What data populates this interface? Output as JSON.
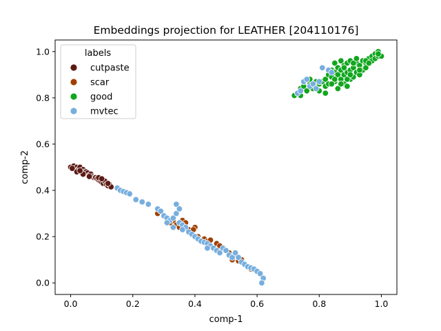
{
  "chart_data": {
    "type": "scatter",
    "title": "Embeddings projection for LEATHER [204110176]",
    "xlabel": "comp-1",
    "ylabel": "comp-2",
    "xlim": [
      -0.05,
      1.05
    ],
    "ylim": [
      -0.05,
      1.05
    ],
    "xticks": [
      "0.0",
      "0.2",
      "0.4",
      "0.6",
      "0.8",
      "1.0"
    ],
    "yticks": [
      "0.0",
      "0.2",
      "0.4",
      "0.6",
      "0.8",
      "1.0"
    ],
    "grid": false,
    "legend": {
      "title": "labels",
      "placement": "top-left"
    },
    "series": [
      {
        "name": "cutpaste",
        "color": "#5c1a14",
        "points": [
          [
            0.0,
            0.5
          ],
          [
            0.01,
            0.505
          ],
          [
            0.015,
            0.495
          ],
          [
            0.02,
            0.5
          ],
          [
            0.025,
            0.49
          ],
          [
            0.03,
            0.5
          ],
          [
            0.035,
            0.485
          ],
          [
            0.04,
            0.49
          ],
          [
            0.045,
            0.48
          ],
          [
            0.05,
            0.48
          ],
          [
            0.055,
            0.475
          ],
          [
            0.06,
            0.465
          ],
          [
            0.065,
            0.47
          ],
          [
            0.07,
            0.46
          ],
          [
            0.075,
            0.455
          ],
          [
            0.08,
            0.455
          ],
          [
            0.085,
            0.45
          ],
          [
            0.09,
            0.445
          ],
          [
            0.095,
            0.44
          ],
          [
            0.1,
            0.435
          ],
          [
            0.105,
            0.43
          ],
          [
            0.11,
            0.44
          ],
          [
            0.115,
            0.425
          ],
          [
            0.12,
            0.42
          ],
          [
            0.125,
            0.425
          ],
          [
            0.13,
            0.415
          ],
          [
            0.02,
            0.48
          ],
          [
            0.04,
            0.47
          ],
          [
            0.06,
            0.46
          ],
          [
            0.09,
            0.455
          ],
          [
            0.1,
            0.45
          ],
          [
            0.12,
            0.43
          ],
          [
            0.005,
            0.495
          ],
          [
            0.03,
            0.485
          ]
        ]
      },
      {
        "name": "scar",
        "color": "#a04000",
        "points": [
          [
            0.28,
            0.3
          ],
          [
            0.3,
            0.29
          ],
          [
            0.32,
            0.26
          ],
          [
            0.33,
            0.27
          ],
          [
            0.34,
            0.25
          ],
          [
            0.35,
            0.24
          ],
          [
            0.36,
            0.27
          ],
          [
            0.37,
            0.26
          ],
          [
            0.38,
            0.23
          ],
          [
            0.4,
            0.24
          ],
          [
            0.41,
            0.2
          ],
          [
            0.43,
            0.19
          ],
          [
            0.44,
            0.18
          ],
          [
            0.45,
            0.185
          ],
          [
            0.47,
            0.17
          ],
          [
            0.48,
            0.16
          ],
          [
            0.5,
            0.14
          ],
          [
            0.51,
            0.13
          ],
          [
            0.52,
            0.1
          ],
          [
            0.53,
            0.12
          ],
          [
            0.54,
            0.095
          ],
          [
            0.55,
            0.1
          ],
          [
            0.56,
            0.08
          ],
          [
            0.57,
            0.07
          ],
          [
            0.58,
            0.06
          ],
          [
            0.59,
            0.06
          ],
          [
            0.395,
            0.23
          ]
        ]
      },
      {
        "name": "good",
        "color": "#11a61e",
        "points": [
          [
            0.72,
            0.81
          ],
          [
            0.73,
            0.82
          ],
          [
            0.74,
            0.81
          ],
          [
            0.74,
            0.84
          ],
          [
            0.75,
            0.85
          ],
          [
            0.76,
            0.83
          ],
          [
            0.77,
            0.86
          ],
          [
            0.77,
            0.88
          ],
          [
            0.78,
            0.84
          ],
          [
            0.79,
            0.87
          ],
          [
            0.8,
            0.86
          ],
          [
            0.81,
            0.87
          ],
          [
            0.82,
            0.85
          ],
          [
            0.82,
            0.88
          ],
          [
            0.83,
            0.9
          ],
          [
            0.83,
            0.86
          ],
          [
            0.84,
            0.92
          ],
          [
            0.84,
            0.89
          ],
          [
            0.85,
            0.95
          ],
          [
            0.85,
            0.91
          ],
          [
            0.85,
            0.87
          ],
          [
            0.86,
            0.93
          ],
          [
            0.86,
            0.9
          ],
          [
            0.86,
            0.84
          ],
          [
            0.87,
            0.96
          ],
          [
            0.87,
            0.92
          ],
          [
            0.87,
            0.88
          ],
          [
            0.88,
            0.94
          ],
          [
            0.88,
            0.9
          ],
          [
            0.88,
            0.86
          ],
          [
            0.89,
            0.95
          ],
          [
            0.89,
            0.91
          ],
          [
            0.89,
            0.85
          ],
          [
            0.9,
            0.96
          ],
          [
            0.9,
            0.92
          ],
          [
            0.9,
            0.88
          ],
          [
            0.91,
            0.93
          ],
          [
            0.91,
            0.89
          ],
          [
            0.92,
            0.95
          ],
          [
            0.92,
            0.91
          ],
          [
            0.93,
            0.94
          ],
          [
            0.93,
            0.9
          ],
          [
            0.94,
            0.96
          ],
          [
            0.94,
            0.92
          ],
          [
            0.95,
            0.95
          ],
          [
            0.95,
            0.93
          ],
          [
            0.96,
            0.97
          ],
          [
            0.97,
            0.98
          ],
          [
            0.97,
            0.96
          ],
          [
            0.98,
            0.99
          ],
          [
            0.98,
            0.97
          ],
          [
            0.99,
            1.0
          ],
          [
            0.99,
            0.98
          ],
          [
            1.0,
            0.98
          ],
          [
            0.85,
            0.88
          ],
          [
            0.87,
            0.86
          ],
          [
            0.89,
            0.88
          ],
          [
            0.91,
            0.95
          ],
          [
            0.93,
            0.92
          ],
          [
            0.95,
            0.96
          ],
          [
            0.96,
            0.95
          ],
          [
            0.99,
            0.99
          ],
          [
            0.84,
            0.86
          ],
          [
            0.88,
            0.93
          ],
          [
            0.9,
            0.9
          ],
          [
            0.82,
            0.82
          ],
          [
            0.8,
            0.83
          ],
          [
            0.92,
            0.97
          ]
        ]
      },
      {
        "name": "mvtec",
        "color": "#77aede",
        "points": [
          [
            0.15,
            0.41
          ],
          [
            0.16,
            0.4
          ],
          [
            0.17,
            0.395
          ],
          [
            0.18,
            0.39
          ],
          [
            0.19,
            0.385
          ],
          [
            0.21,
            0.36
          ],
          [
            0.23,
            0.35
          ],
          [
            0.25,
            0.34
          ],
          [
            0.28,
            0.32
          ],
          [
            0.29,
            0.31
          ],
          [
            0.3,
            0.29
          ],
          [
            0.31,
            0.28
          ],
          [
            0.32,
            0.27
          ],
          [
            0.33,
            0.28
          ],
          [
            0.34,
            0.3
          ],
          [
            0.34,
            0.34
          ],
          [
            0.35,
            0.32
          ],
          [
            0.35,
            0.26
          ],
          [
            0.36,
            0.25
          ],
          [
            0.37,
            0.24
          ],
          [
            0.38,
            0.22
          ],
          [
            0.39,
            0.21
          ],
          [
            0.4,
            0.2
          ],
          [
            0.41,
            0.19
          ],
          [
            0.42,
            0.18
          ],
          [
            0.43,
            0.175
          ],
          [
            0.44,
            0.17
          ],
          [
            0.45,
            0.16
          ],
          [
            0.46,
            0.15
          ],
          [
            0.47,
            0.14
          ],
          [
            0.48,
            0.13
          ],
          [
            0.49,
            0.15
          ],
          [
            0.5,
            0.14
          ],
          [
            0.51,
            0.12
          ],
          [
            0.52,
            0.11
          ],
          [
            0.53,
            0.13
          ],
          [
            0.54,
            0.11
          ],
          [
            0.55,
            0.09
          ],
          [
            0.56,
            0.08
          ],
          [
            0.57,
            0.07
          ],
          [
            0.58,
            0.065
          ],
          [
            0.59,
            0.06
          ],
          [
            0.6,
            0.05
          ],
          [
            0.61,
            0.04
          ],
          [
            0.62,
            0.02
          ],
          [
            0.615,
            0.0
          ],
          [
            0.33,
            0.24
          ],
          [
            0.36,
            0.23
          ],
          [
            0.31,
            0.26
          ],
          [
            0.44,
            0.15
          ],
          [
            0.73,
            0.82
          ],
          [
            0.74,
            0.83
          ],
          [
            0.75,
            0.87
          ],
          [
            0.76,
            0.88
          ],
          [
            0.77,
            0.85
          ],
          [
            0.78,
            0.86
          ],
          [
            0.79,
            0.84
          ],
          [
            0.8,
            0.87
          ],
          [
            0.81,
            0.93
          ],
          [
            0.83,
            0.92
          ],
          [
            0.84,
            0.91
          ]
        ]
      }
    ]
  }
}
